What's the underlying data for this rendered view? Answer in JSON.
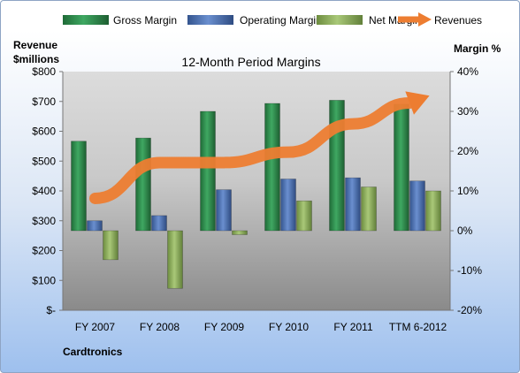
{
  "chart_data": {
    "type": "bar",
    "title": "12-Month Period Margins",
    "y_left_label": [
      "Revenue",
      "$millions"
    ],
    "y_right_label": "Margin %",
    "footer": "Cardtronics",
    "categories": [
      "FY 2007",
      "FY 2008",
      "FY 2009",
      "FY 2010",
      "FY 2011",
      "TTM 6-2012"
    ],
    "y_left_ticks": [
      "$-",
      "$100",
      "$200",
      "$300",
      "$400",
      "$500",
      "$600",
      "$700",
      "$800"
    ],
    "y_left_lim": [
      0,
      800
    ],
    "y_right_ticks": [
      "-20%",
      "-10%",
      "0%",
      "10%",
      "20%",
      "30%",
      "40%"
    ],
    "y_right_lim": [
      -20,
      40
    ],
    "legend_position": "top",
    "grid": false,
    "series": [
      {
        "name": "Gross Margin",
        "kind": "bar",
        "axis": "right",
        "color": "#2e8b4a",
        "values": [
          22.5,
          23.3,
          30.0,
          32.0,
          32.8,
          31.8
        ]
      },
      {
        "name": "Operating Margin",
        "kind": "bar",
        "axis": "right",
        "color": "#4a6fb5",
        "values": [
          2.5,
          3.8,
          10.3,
          13.0,
          13.3,
          12.5
        ]
      },
      {
        "name": "Net Margin",
        "kind": "bar",
        "axis": "right",
        "color": "#8fb55a",
        "values": [
          -7.3,
          -14.5,
          -1.0,
          7.5,
          11.0,
          10.0
        ]
      },
      {
        "name": "Revenues",
        "kind": "line",
        "axis": "left",
        "color": "#ed7d31",
        "values": [
          375,
          495,
          495,
          530,
          625,
          705
        ]
      }
    ]
  }
}
